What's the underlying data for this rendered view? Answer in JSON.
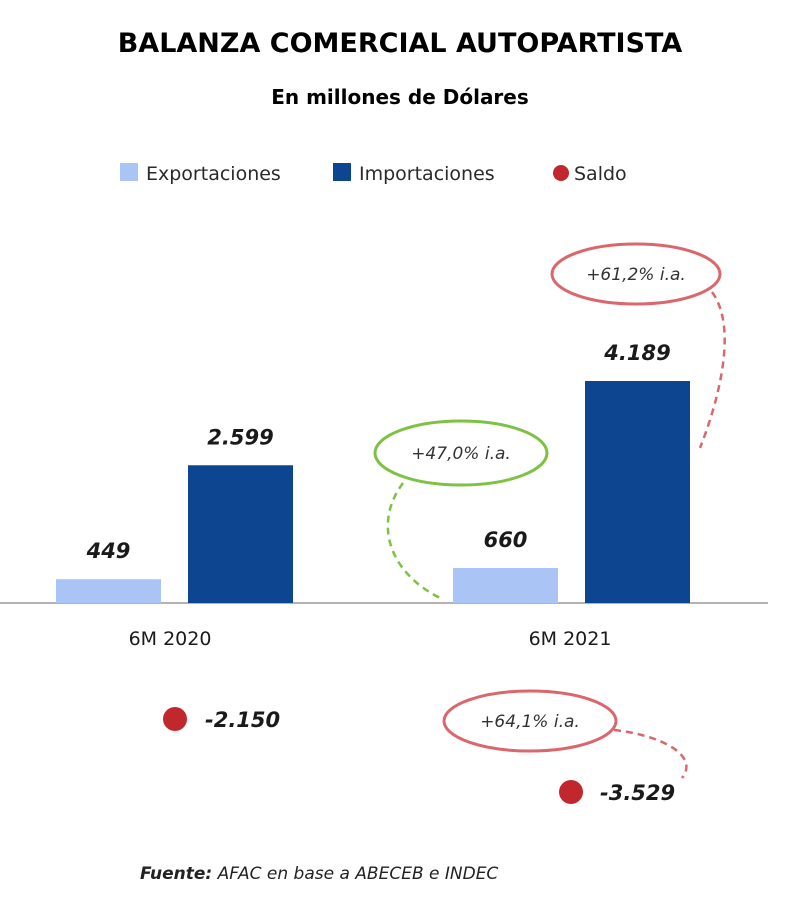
{
  "chart_data": {
    "type": "bar",
    "title": "BALANZA COMERCIAL AUTOPARTISTA",
    "subtitle": "En millones de Dólares",
    "categories": [
      "6M 2020",
      "6M 2021"
    ],
    "series": [
      {
        "name": "Exportaciones",
        "values": [
          449,
          660
        ],
        "labels": [
          "449",
          "660"
        ],
        "color": "#a9c4f5"
      },
      {
        "name": "Importaciones",
        "values": [
          2599,
          4189
        ],
        "labels": [
          "2.599",
          "4.189"
        ],
        "color": "#0d4590"
      }
    ],
    "balance": {
      "name": "Saldo",
      "values": [
        -2150,
        -3529
      ],
      "labels": [
        "-2.150",
        "-3.529"
      ],
      "color": "#c0282e"
    },
    "annotations": [
      {
        "text": "+47,0% i.a.",
        "series": "Exportaciones",
        "category": "6M 2021",
        "color": "#7dc242"
      },
      {
        "text": "+61,2% i.a.",
        "series": "Importaciones",
        "category": "6M 2021",
        "color": "#d9676b"
      },
      {
        "text": "+64,1% i.a.",
        "series": "Saldo",
        "category": "6M 2021",
        "color": "#d9676b"
      }
    ],
    "legend_position": "top",
    "grid": false
  },
  "source": {
    "label": "Fuente:",
    "text": " AFAC en base a ABECEB e INDEC"
  }
}
